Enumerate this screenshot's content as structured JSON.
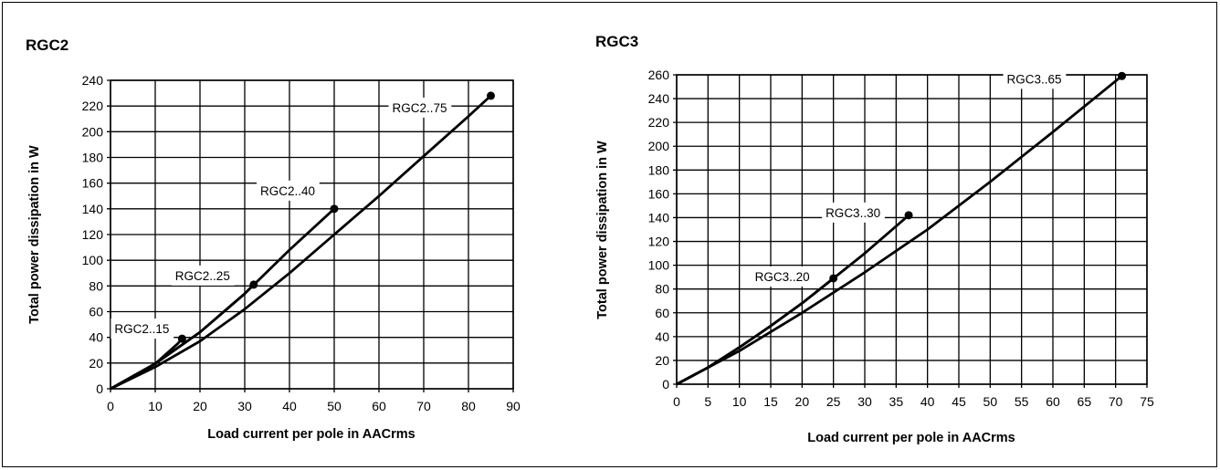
{
  "chart_data": [
    {
      "type": "line",
      "title": "RGC2",
      "xlabel": "Load current per pole in AACrms",
      "ylabel": "Total power dissipation in W",
      "xlim": [
        0,
        90
      ],
      "ylim": [
        0,
        240
      ],
      "xticks": [
        "0",
        "10",
        "20",
        "30",
        "40",
        "50",
        "60",
        "70",
        "80",
        "90"
      ],
      "yticks": [
        "0",
        "20",
        "40",
        "60",
        "80",
        "100",
        "120",
        "140",
        "160",
        "180",
        "200",
        "220",
        "240"
      ],
      "grid": true,
      "series": [
        {
          "name": "RGC2..15",
          "x": [
            0,
            5,
            10,
            15,
            16
          ],
          "y": [
            0,
            9,
            19.5,
            35,
            39
          ]
        },
        {
          "name": "RGC2..25",
          "x": [
            0,
            10,
            20,
            30,
            32
          ],
          "y": [
            0,
            19.5,
            44,
            74,
            81
          ]
        },
        {
          "name": "RGC2..40",
          "x": [
            0,
            10,
            20,
            30,
            40,
            50
          ],
          "y": [
            0,
            19.5,
            44,
            74,
            108,
            140
          ]
        },
        {
          "name": "RGC2..75",
          "x": [
            0,
            10,
            20,
            30,
            40,
            50,
            60,
            70,
            80,
            85
          ],
          "y": [
            0,
            17,
            37,
            62,
            90,
            120,
            150,
            181,
            212,
            228
          ]
        }
      ],
      "annotations": [
        {
          "text": "RGC2..15",
          "x": 16,
          "y": 39
        },
        {
          "text": "RGC2..25",
          "x": 32,
          "y": 81
        },
        {
          "text": "RGC2..40",
          "x": 50,
          "y": 140
        },
        {
          "text": "RGC2..75",
          "x": 85,
          "y": 228
        }
      ]
    },
    {
      "type": "line",
      "title": "RGC3",
      "xlabel": "Load current per pole in AACrms",
      "ylabel": "Total power dissipation in W",
      "xlim": [
        0,
        75
      ],
      "ylim": [
        0,
        260
      ],
      "xticks": [
        "0",
        "5",
        "10",
        "15",
        "20",
        "25",
        "30",
        "35",
        "40",
        "45",
        "50",
        "55",
        "60",
        "65",
        "70",
        "75"
      ],
      "yticks": [
        "0",
        "20",
        "40",
        "60",
        "80",
        "100",
        "120",
        "140",
        "160",
        "180",
        "200",
        "220",
        "240",
        "260"
      ],
      "grid": true,
      "series": [
        {
          "name": "RGC3..20",
          "x": [
            0,
            5,
            10,
            15,
            20,
            25
          ],
          "y": [
            0,
            14,
            31,
            49,
            68,
            89
          ]
        },
        {
          "name": "RGC3..30",
          "x": [
            0,
            5,
            10,
            15,
            20,
            25,
            30,
            37
          ],
          "y": [
            0,
            14,
            31,
            49,
            68,
            89,
            110,
            142
          ]
        },
        {
          "name": "RGC3..65",
          "x": [
            0,
            10,
            20,
            30,
            40,
            50,
            60,
            71
          ],
          "y": [
            0,
            28,
            60,
            94,
            130,
            170,
            212,
            259
          ]
        }
      ],
      "annotations": [
        {
          "text": "RGC3..20",
          "x": 25,
          "y": 89
        },
        {
          "text": "RGC3..30",
          "x": 37,
          "y": 142
        },
        {
          "text": "RGC3..65",
          "x": 71,
          "y": 259
        }
      ]
    }
  ]
}
